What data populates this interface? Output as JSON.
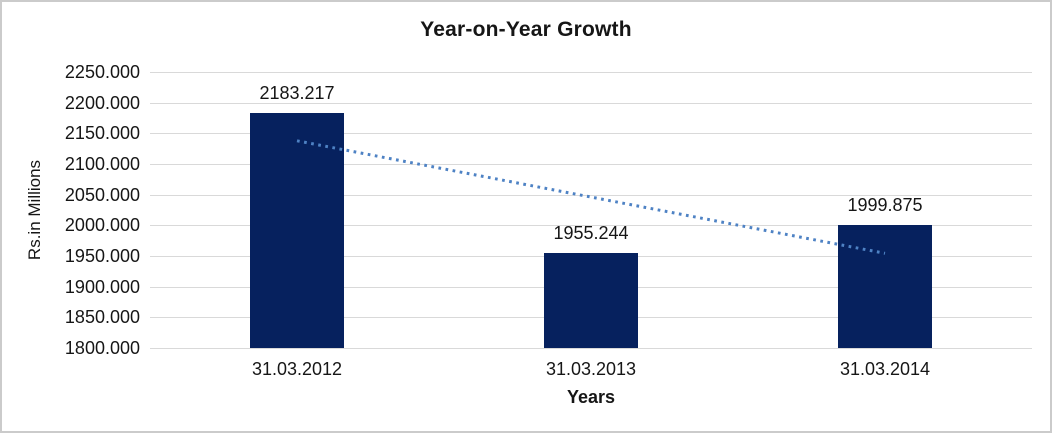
{
  "chart_data": {
    "type": "bar",
    "title": "Year-on-Year Growth",
    "xlabel": "Years",
    "ylabel": "Rs.in Millions",
    "categories": [
      "31.03.2012",
      "31.03.2013",
      "31.03.2014"
    ],
    "values": [
      2183.217,
      1955.244,
      1999.875
    ],
    "data_labels": [
      "2183.217",
      "1955.244",
      "1999.875"
    ],
    "ylim": [
      1800,
      2250
    ],
    "ytick_step": 50,
    "yticks": [
      "2250.000",
      "2200.000",
      "2150.000",
      "2100.000",
      "2050.000",
      "2000.000",
      "1950.000",
      "1900.000",
      "1850.000",
      "1800.000"
    ],
    "number_format": "0.000",
    "grid": true,
    "legend": "none",
    "trendline": {
      "type": "linear",
      "style": "dotted",
      "start_value": 2137.783,
      "end_value": 1954.441
    },
    "colors": {
      "bar": "#06215e",
      "trendline": "#4e82c4",
      "gridline": "#d9d9d9",
      "text": "#161616",
      "border": "#cbcbcb",
      "background": "#ffffff"
    }
  }
}
